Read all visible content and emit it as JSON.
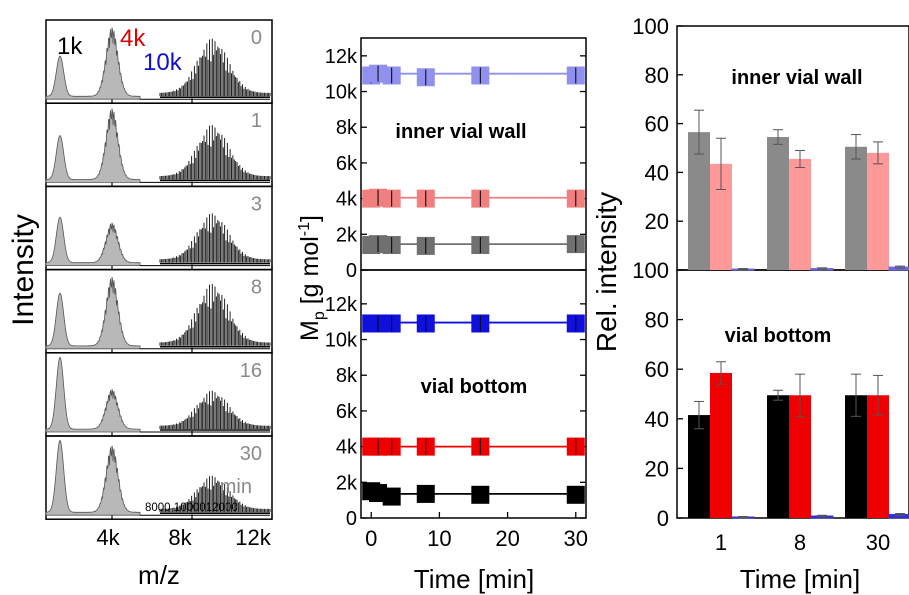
{
  "chart_data": [
    {
      "type": "line",
      "panel": "maldi-spectra",
      "ylabel": "Intensity",
      "xlabel": "m/z",
      "x_ticks": [
        "4k",
        "8k",
        "12k"
      ],
      "legend": [
        {
          "label": "1k",
          "color": "#000000"
        },
        {
          "label": "4k",
          "color": "#e00000"
        },
        {
          "label": "10k",
          "color": "#1010cc"
        }
      ],
      "time_labels": [
        "0",
        "1",
        "3",
        "8",
        "16",
        "30"
      ],
      "time_unit": "min",
      "inset_x_ticks": "8000 1000012000",
      "spectra": [
        {
          "time": "0",
          "peak_1k": 0.55,
          "peak_4k": 0.95,
          "inset_peak": 0.85
        },
        {
          "time": "1",
          "peak_1k": 0.6,
          "peak_4k": 0.98,
          "inset_peak": 0.8
        },
        {
          "time": "3",
          "peak_1k": 0.62,
          "peak_4k": 0.55,
          "inset_peak": 0.72
        },
        {
          "time": "8",
          "peak_1k": 0.72,
          "peak_4k": 0.95,
          "inset_peak": 0.92
        },
        {
          "time": "16",
          "peak_1k": 0.98,
          "peak_4k": 0.55,
          "inset_peak": 0.55
        },
        {
          "time": "30",
          "peak_1k": 0.98,
          "peak_4k": 0.92,
          "inset_peak": 0.52
        }
      ]
    },
    {
      "type": "scatter",
      "panel": "mp-vs-time",
      "xlabel": "Time [min]",
      "ylabel": "Mp [g mol-1]",
      "x_ticks": [
        "0",
        "10",
        "20",
        "30"
      ],
      "xlim": [
        -1.5,
        31.5
      ],
      "ylim": [
        0,
        13000
      ],
      "y_ticks": [
        "0",
        "2k",
        "4k",
        "6k",
        "8k",
        "10k",
        "12k"
      ],
      "subpanels": [
        {
          "label": "inner vial wall",
          "series": [
            {
              "color": "#9090ee",
              "x": [
                0,
                1,
                3,
                8,
                16,
                30
              ],
              "y": [
                10900,
                11000,
                10900,
                10800,
                10900,
                10900
              ],
              "fit": 11000
            },
            {
              "color": "#f08080",
              "x": [
                0,
                1,
                3,
                8,
                16,
                30
              ],
              "y": [
                4000,
                4050,
                4000,
                4000,
                4000,
                4000
              ],
              "fit": 4050
            },
            {
              "color": "#707070",
              "x": [
                0,
                1,
                3,
                8,
                16,
                30
              ],
              "y": [
                1400,
                1450,
                1400,
                1350,
                1400,
                1450
              ],
              "fit": 1450
            }
          ]
        },
        {
          "label": "vial bottom",
          "series": [
            {
              "color": "#1010dd",
              "x": [
                0,
                1,
                3,
                8,
                16,
                30
              ],
              "y": [
                10900,
                10900,
                10900,
                10900,
                10900,
                10900
              ],
              "fit": 10950
            },
            {
              "color": "#ee0000",
              "x": [
                0,
                1,
                3,
                8,
                16,
                30
              ],
              "y": [
                4000,
                4000,
                4000,
                4000,
                4000,
                4000
              ],
              "fit": 4000
            },
            {
              "color": "#000000",
              "x": [
                0,
                1,
                3,
                8,
                16,
                30
              ],
              "y": [
                1500,
                1400,
                1200,
                1350,
                1300,
                1300
              ],
              "fit": 1350
            }
          ]
        }
      ]
    },
    {
      "type": "bar",
      "panel": "relative-intensity",
      "xlabel": "Time [min]",
      "ylabel": "Rel. intensity",
      "categories": [
        "1",
        "8",
        "30"
      ],
      "ylim": [
        0,
        100
      ],
      "y_ticks_top": [
        "20",
        "40",
        "60",
        "80",
        "100"
      ],
      "y_ticks_bottom": [
        "0",
        "20",
        "40",
        "60",
        "80",
        "100"
      ],
      "subpanels": [
        {
          "label": "inner vial wall",
          "series": [
            {
              "color": "#8a8a8a",
              "values": [
                56.5,
                54.5,
                50.5
              ],
              "errors": [
                9,
                3,
                5
              ]
            },
            {
              "color": "#ff9999",
              "values": [
                43.5,
                45.5,
                48
              ],
              "errors": [
                10.5,
                3.5,
                4.5
              ]
            },
            {
              "color": "#6a6add",
              "values": [
                0.4,
                0.6,
                1.2
              ],
              "errors": [
                0.2,
                0.3,
                0.4
              ]
            }
          ]
        },
        {
          "label": "vial bottom",
          "series": [
            {
              "color": "#000000",
              "values": [
                41.5,
                49.5,
                49.5
              ],
              "errors": [
                5.5,
                2,
                8.5
              ]
            },
            {
              "color": "#ee0000",
              "values": [
                58.5,
                49.5,
                49.5
              ],
              "errors": [
                4.5,
                8.5,
                8
              ]
            },
            {
              "color": "#3333cc",
              "values": [
                0.4,
                0.8,
                1.4
              ],
              "errors": [
                0.2,
                0.3,
                0.4
              ]
            }
          ]
        }
      ]
    }
  ]
}
